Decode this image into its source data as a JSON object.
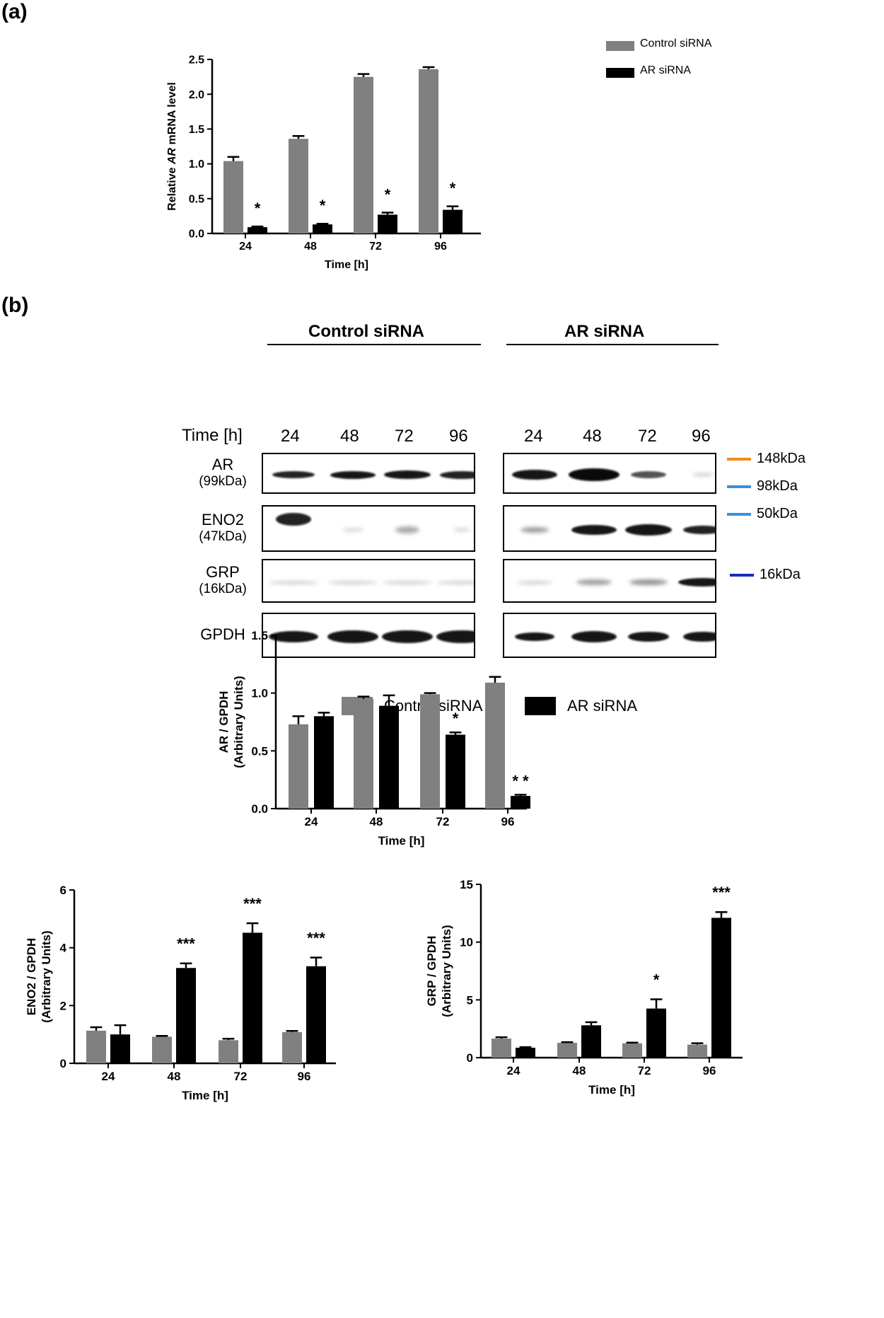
{
  "panel_labels": {
    "a": "(a)",
    "b": "(b)"
  },
  "colors": {
    "control": "#808080",
    "ar": "#000000"
  },
  "blot": {
    "group_control": "Control siRNA",
    "group_ar": "AR siRNA",
    "time_header": "Time [h]",
    "times": [
      "24",
      "48",
      "72",
      "96"
    ],
    "rows": [
      {
        "name": "AR",
        "mw": "(99kDa)"
      },
      {
        "name": "ENO2",
        "mw": "(47kDa)"
      },
      {
        "name": "GRP",
        "mw": "(16kDa)"
      },
      {
        "name": "GPDH",
        "mw": ""
      }
    ],
    "markers": [
      {
        "label": "148kDa",
        "color": "#f28a1e"
      },
      {
        "label": "98kDa",
        "color": "#3a8fe0"
      },
      {
        "label": "50kDa",
        "color": "#3a8fe0"
      },
      {
        "label": "16kDa",
        "color": "#1a2ab8"
      }
    ],
    "legend": {
      "control": "Control siRNA",
      "ar": "AR siRNA"
    }
  },
  "chart_data": [
    {
      "type": "bar",
      "panel": "a",
      "categories": [
        "24",
        "48",
        "72",
        "96"
      ],
      "series": [
        {
          "name": "Control siRNA",
          "values": [
            1.04,
            1.36,
            2.25,
            2.36
          ],
          "errors": [
            0.06,
            0.04,
            0.04,
            0.03
          ]
        },
        {
          "name": "AR siRNA",
          "values": [
            0.09,
            0.13,
            0.27,
            0.34
          ],
          "errors": [
            0.01,
            0.01,
            0.03,
            0.05
          ]
        }
      ],
      "annotations": [
        "",
        "*",
        "",
        "*",
        "",
        "*",
        "",
        "*"
      ],
      "xlabel": "Time [h]",
      "ylabel_parts": [
        "Relative ",
        "AR",
        " mRNA level"
      ],
      "ylim": [
        0,
        2.5
      ],
      "yticks": [
        "0.0",
        "0.5",
        "1.0",
        "1.5",
        "2.0",
        "2.5"
      ],
      "legend": [
        "Control siRNA",
        "AR siRNA"
      ]
    },
    {
      "type": "bar",
      "panel": "b-AR",
      "categories": [
        "24",
        "48",
        "72",
        "96"
      ],
      "series": [
        {
          "name": "Control siRNA",
          "values": [
            0.73,
            0.95,
            0.99,
            1.09
          ],
          "errors": [
            0.07,
            0.02,
            0.01,
            0.05
          ]
        },
        {
          "name": "AR siRNA",
          "values": [
            0.8,
            0.89,
            0.64,
            0.11
          ],
          "errors": [
            0.03,
            0.09,
            0.02,
            0.01
          ]
        }
      ],
      "annotations": [
        "",
        "",
        "",
        "",
        "",
        "*",
        "",
        "* *"
      ],
      "xlabel": "Time [h]",
      "ylabel_lines": [
        "AR / GPDH",
        "(Arbitrary Units)"
      ],
      "ylim": [
        0,
        1.5
      ],
      "yticks": [
        "0.0",
        "0.5",
        "1.0",
        "1.5"
      ]
    },
    {
      "type": "bar",
      "panel": "b-ENO2",
      "categories": [
        "24",
        "48",
        "72",
        "96"
      ],
      "series": [
        {
          "name": "Control siRNA",
          "values": [
            1.13,
            0.92,
            0.8,
            1.08
          ],
          "errors": [
            0.12,
            0.03,
            0.05,
            0.04
          ]
        },
        {
          "name": "AR siRNA",
          "values": [
            1.0,
            3.3,
            4.52,
            3.36
          ],
          "errors": [
            0.32,
            0.16,
            0.33,
            0.3
          ]
        }
      ],
      "annotations": [
        "",
        "",
        "",
        "***",
        "",
        "***",
        "",
        "***"
      ],
      "xlabel": "Time [h]",
      "ylabel_lines": [
        "ENO2 / GPDH",
        "(Arbitrary Units)"
      ],
      "ylim": [
        0,
        6
      ],
      "yticks": [
        "0",
        "2",
        "4",
        "6"
      ]
    },
    {
      "type": "bar",
      "panel": "b-GRP",
      "categories": [
        "24",
        "48",
        "72",
        "96"
      ],
      "series": [
        {
          "name": "Control siRNA",
          "values": [
            1.65,
            1.28,
            1.24,
            1.13
          ],
          "errors": [
            0.12,
            0.06,
            0.06,
            0.12
          ]
        },
        {
          "name": "AR siRNA",
          "values": [
            0.86,
            2.8,
            4.25,
            12.1
          ],
          "errors": [
            0.05,
            0.27,
            0.8,
            0.5
          ]
        }
      ],
      "annotations": [
        "",
        "",
        "",
        "",
        "",
        "*",
        "",
        "***"
      ],
      "xlabel": "Time [h]",
      "ylabel_lines": [
        "GRP / GPDH",
        "(Arbitrary Units)"
      ],
      "ylim": [
        0,
        15
      ],
      "yticks": [
        "0",
        "5",
        "10",
        "15"
      ]
    }
  ]
}
